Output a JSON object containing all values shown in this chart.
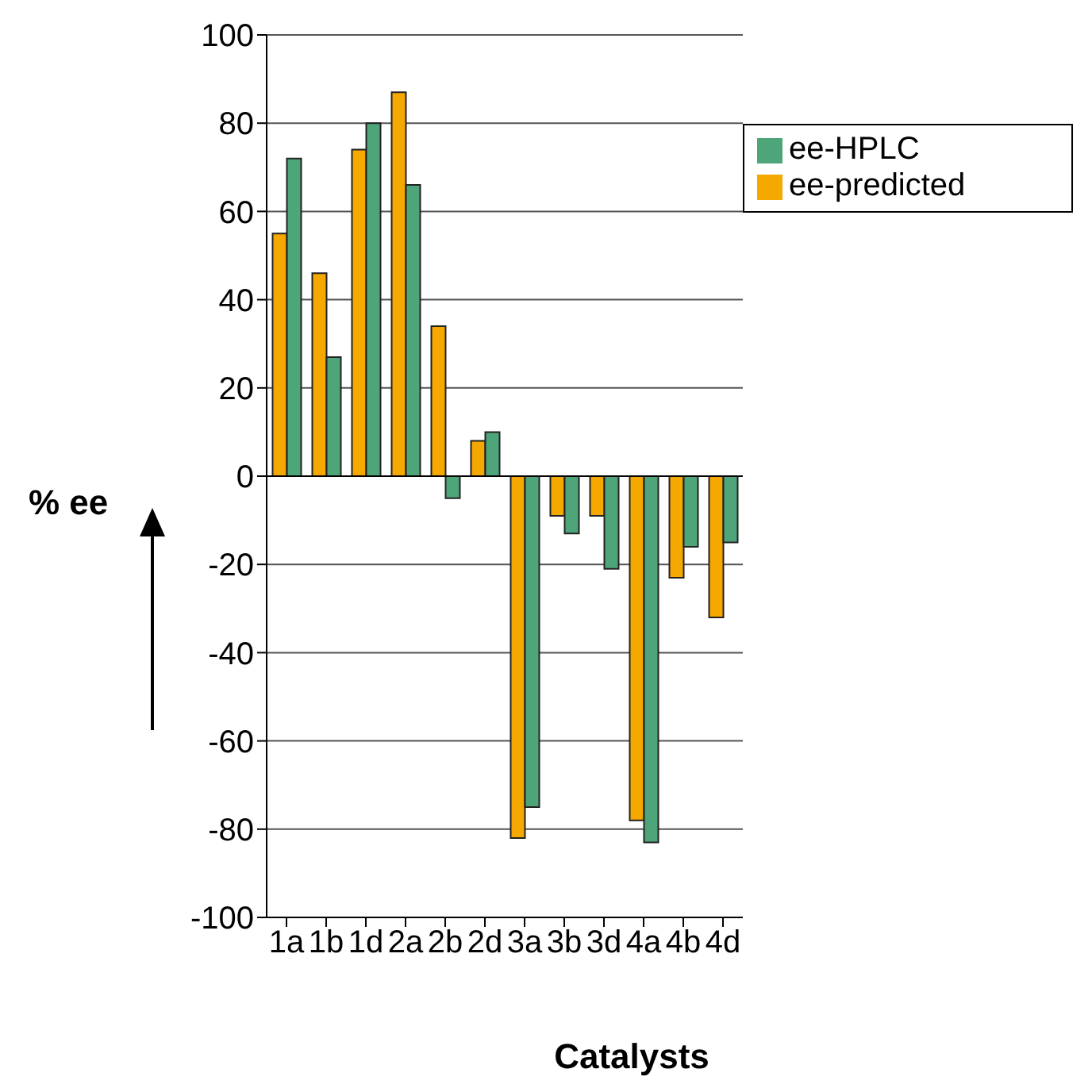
{
  "chart_data": {
    "type": "bar",
    "xlabel": "Catalysts",
    "ylabel": "% ee",
    "categories": [
      "1a",
      "1b",
      "1d",
      "2a",
      "2b",
      "2d",
      "3a",
      "3b",
      "3d",
      "4a",
      "4b",
      "4d"
    ],
    "series": [
      {
        "name": "ee-predicted",
        "color": "#f5a800",
        "values": [
          55,
          46,
          74,
          87,
          34,
          8,
          -82,
          -9,
          -9,
          -78,
          -23,
          -32
        ]
      },
      {
        "name": "ee-HPLC",
        "color": "#4fa57a",
        "values": [
          72,
          27,
          80,
          66,
          -5,
          10,
          -75,
          -13,
          -21,
          -83,
          -16,
          -15
        ]
      }
    ],
    "ylim": [
      -100,
      100
    ],
    "yticks": [
      -100,
      -80,
      -60,
      -40,
      -20,
      0,
      20,
      40,
      60,
      80,
      100
    ],
    "grid": "y",
    "legend": "top right"
  }
}
